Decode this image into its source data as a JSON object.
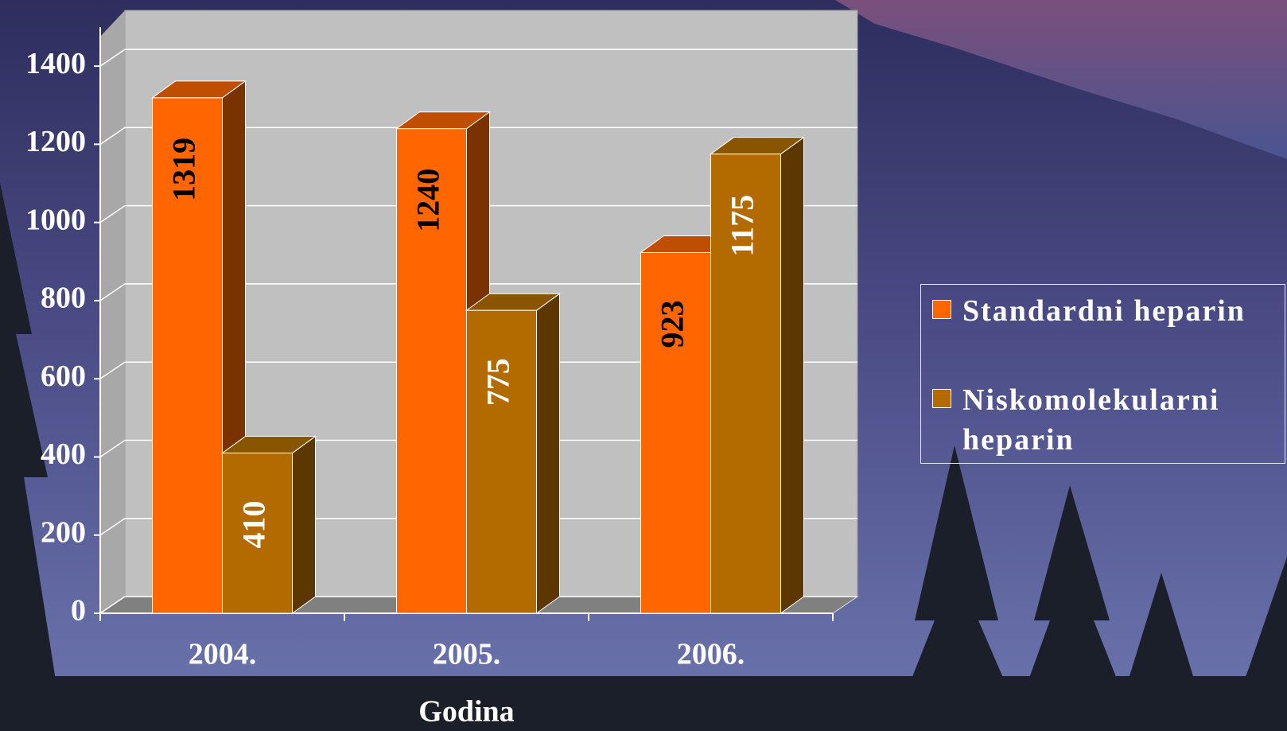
{
  "chart_data": {
    "type": "bar3d",
    "x_label": "Godina",
    "categories": [
      "2004.",
      "2005.",
      "2006."
    ],
    "series": [
      {
        "name": "Standardni heparin",
        "color": "#ff6600",
        "values": [
          1319,
          1240,
          923
        ]
      },
      {
        "name": "Niskomolekularni heparin",
        "color": "#b36b00",
        "values": [
          410,
          775,
          1175
        ]
      }
    ],
    "ylim": [
      0,
      1500
    ],
    "yticks": [
      0,
      200,
      400,
      600,
      800,
      1000,
      1200,
      1400
    ],
    "grid": true,
    "legend": "right"
  }
}
